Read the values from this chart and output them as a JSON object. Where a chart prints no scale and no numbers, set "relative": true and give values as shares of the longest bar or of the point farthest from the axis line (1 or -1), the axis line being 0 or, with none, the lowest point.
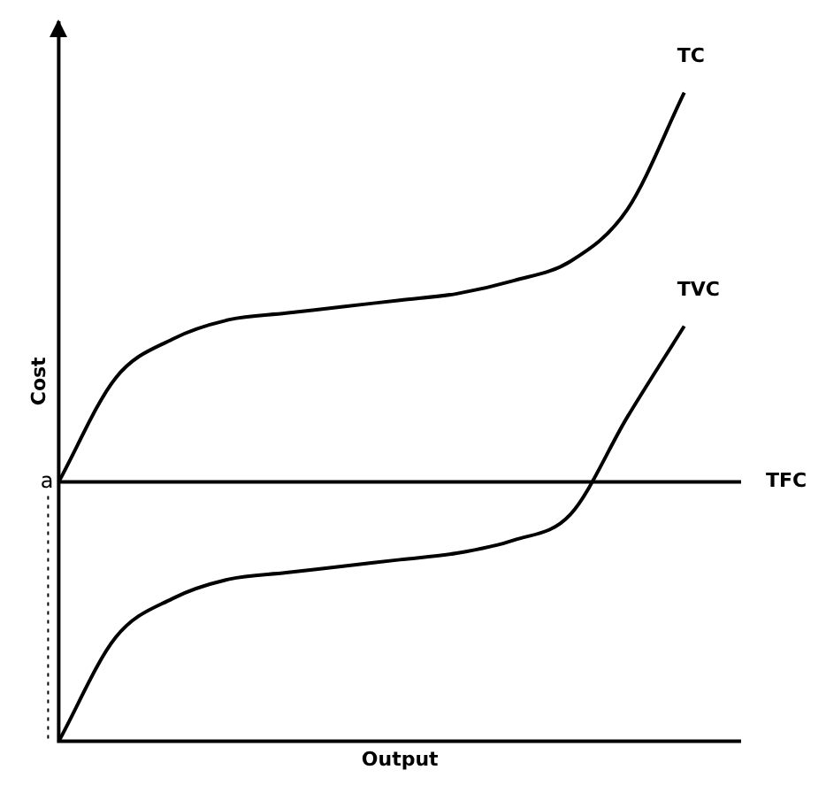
{
  "chart_data": {
    "type": "line",
    "relative": true,
    "xlabel": "Output",
    "ylabel": "Cost",
    "grid": false,
    "legend": false,
    "marker": "none",
    "line_style": "solid",
    "categories": [
      null,
      null,
      null,
      null,
      null,
      null,
      null,
      null,
      null,
      null,
      null,
      null,
      null
    ],
    "series": [
      {
        "name": "TC",
        "color": "#000000",
        "values": [
          0.4,
          0.56,
          0.62,
          0.65,
          0.66,
          0.67,
          0.68,
          0.69,
          0.71,
          0.74,
          0.82,
          1,
          null
        ]
      },
      {
        "name": "TVC",
        "color": "#000000",
        "values": [
          0,
          0.16,
          0.22,
          0.25,
          0.26,
          0.27,
          0.28,
          0.29,
          0.31,
          0.35,
          0.5,
          0.64,
          null
        ]
      },
      {
        "name": "TFC",
        "color": "#000000",
        "values": [
          0.4,
          0.4,
          0.4,
          0.4,
          0.4,
          0.4,
          0.4,
          0.4,
          0.4,
          0.4,
          0.4,
          0.4,
          0.4
        ]
      }
    ],
    "annotations": [
      "a"
    ]
  }
}
